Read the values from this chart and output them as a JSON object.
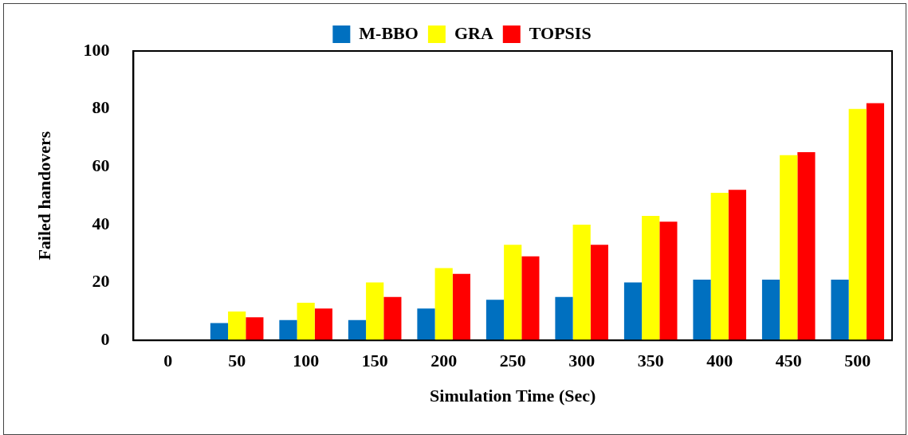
{
  "chart_data": {
    "type": "bar",
    "xlabel": "Simulation Time (Sec)",
    "ylabel": "Failed handovers",
    "categories": [
      "0",
      "50",
      "100",
      "150",
      "200",
      "250",
      "300",
      "350",
      "400",
      "450",
      "500"
    ],
    "series": [
      {
        "name": "M-BBO",
        "color": "#0070c0",
        "values": [
          0,
          6,
          7,
          7,
          11,
          14,
          15,
          20,
          21,
          21,
          21
        ]
      },
      {
        "name": "GRA",
        "color": "#ffff00",
        "values": [
          0,
          10,
          13,
          20,
          25,
          33,
          40,
          43,
          51,
          64,
          80
        ]
      },
      {
        "name": "TOPSIS",
        "color": "#ff0000",
        "values": [
          0,
          8,
          11,
          15,
          23,
          29,
          33,
          41,
          52,
          65,
          82
        ]
      }
    ],
    "ylim": [
      0,
      100
    ],
    "yticks": [
      0,
      20,
      40,
      60,
      80,
      100
    ],
    "grid": false,
    "legend": "top"
  }
}
